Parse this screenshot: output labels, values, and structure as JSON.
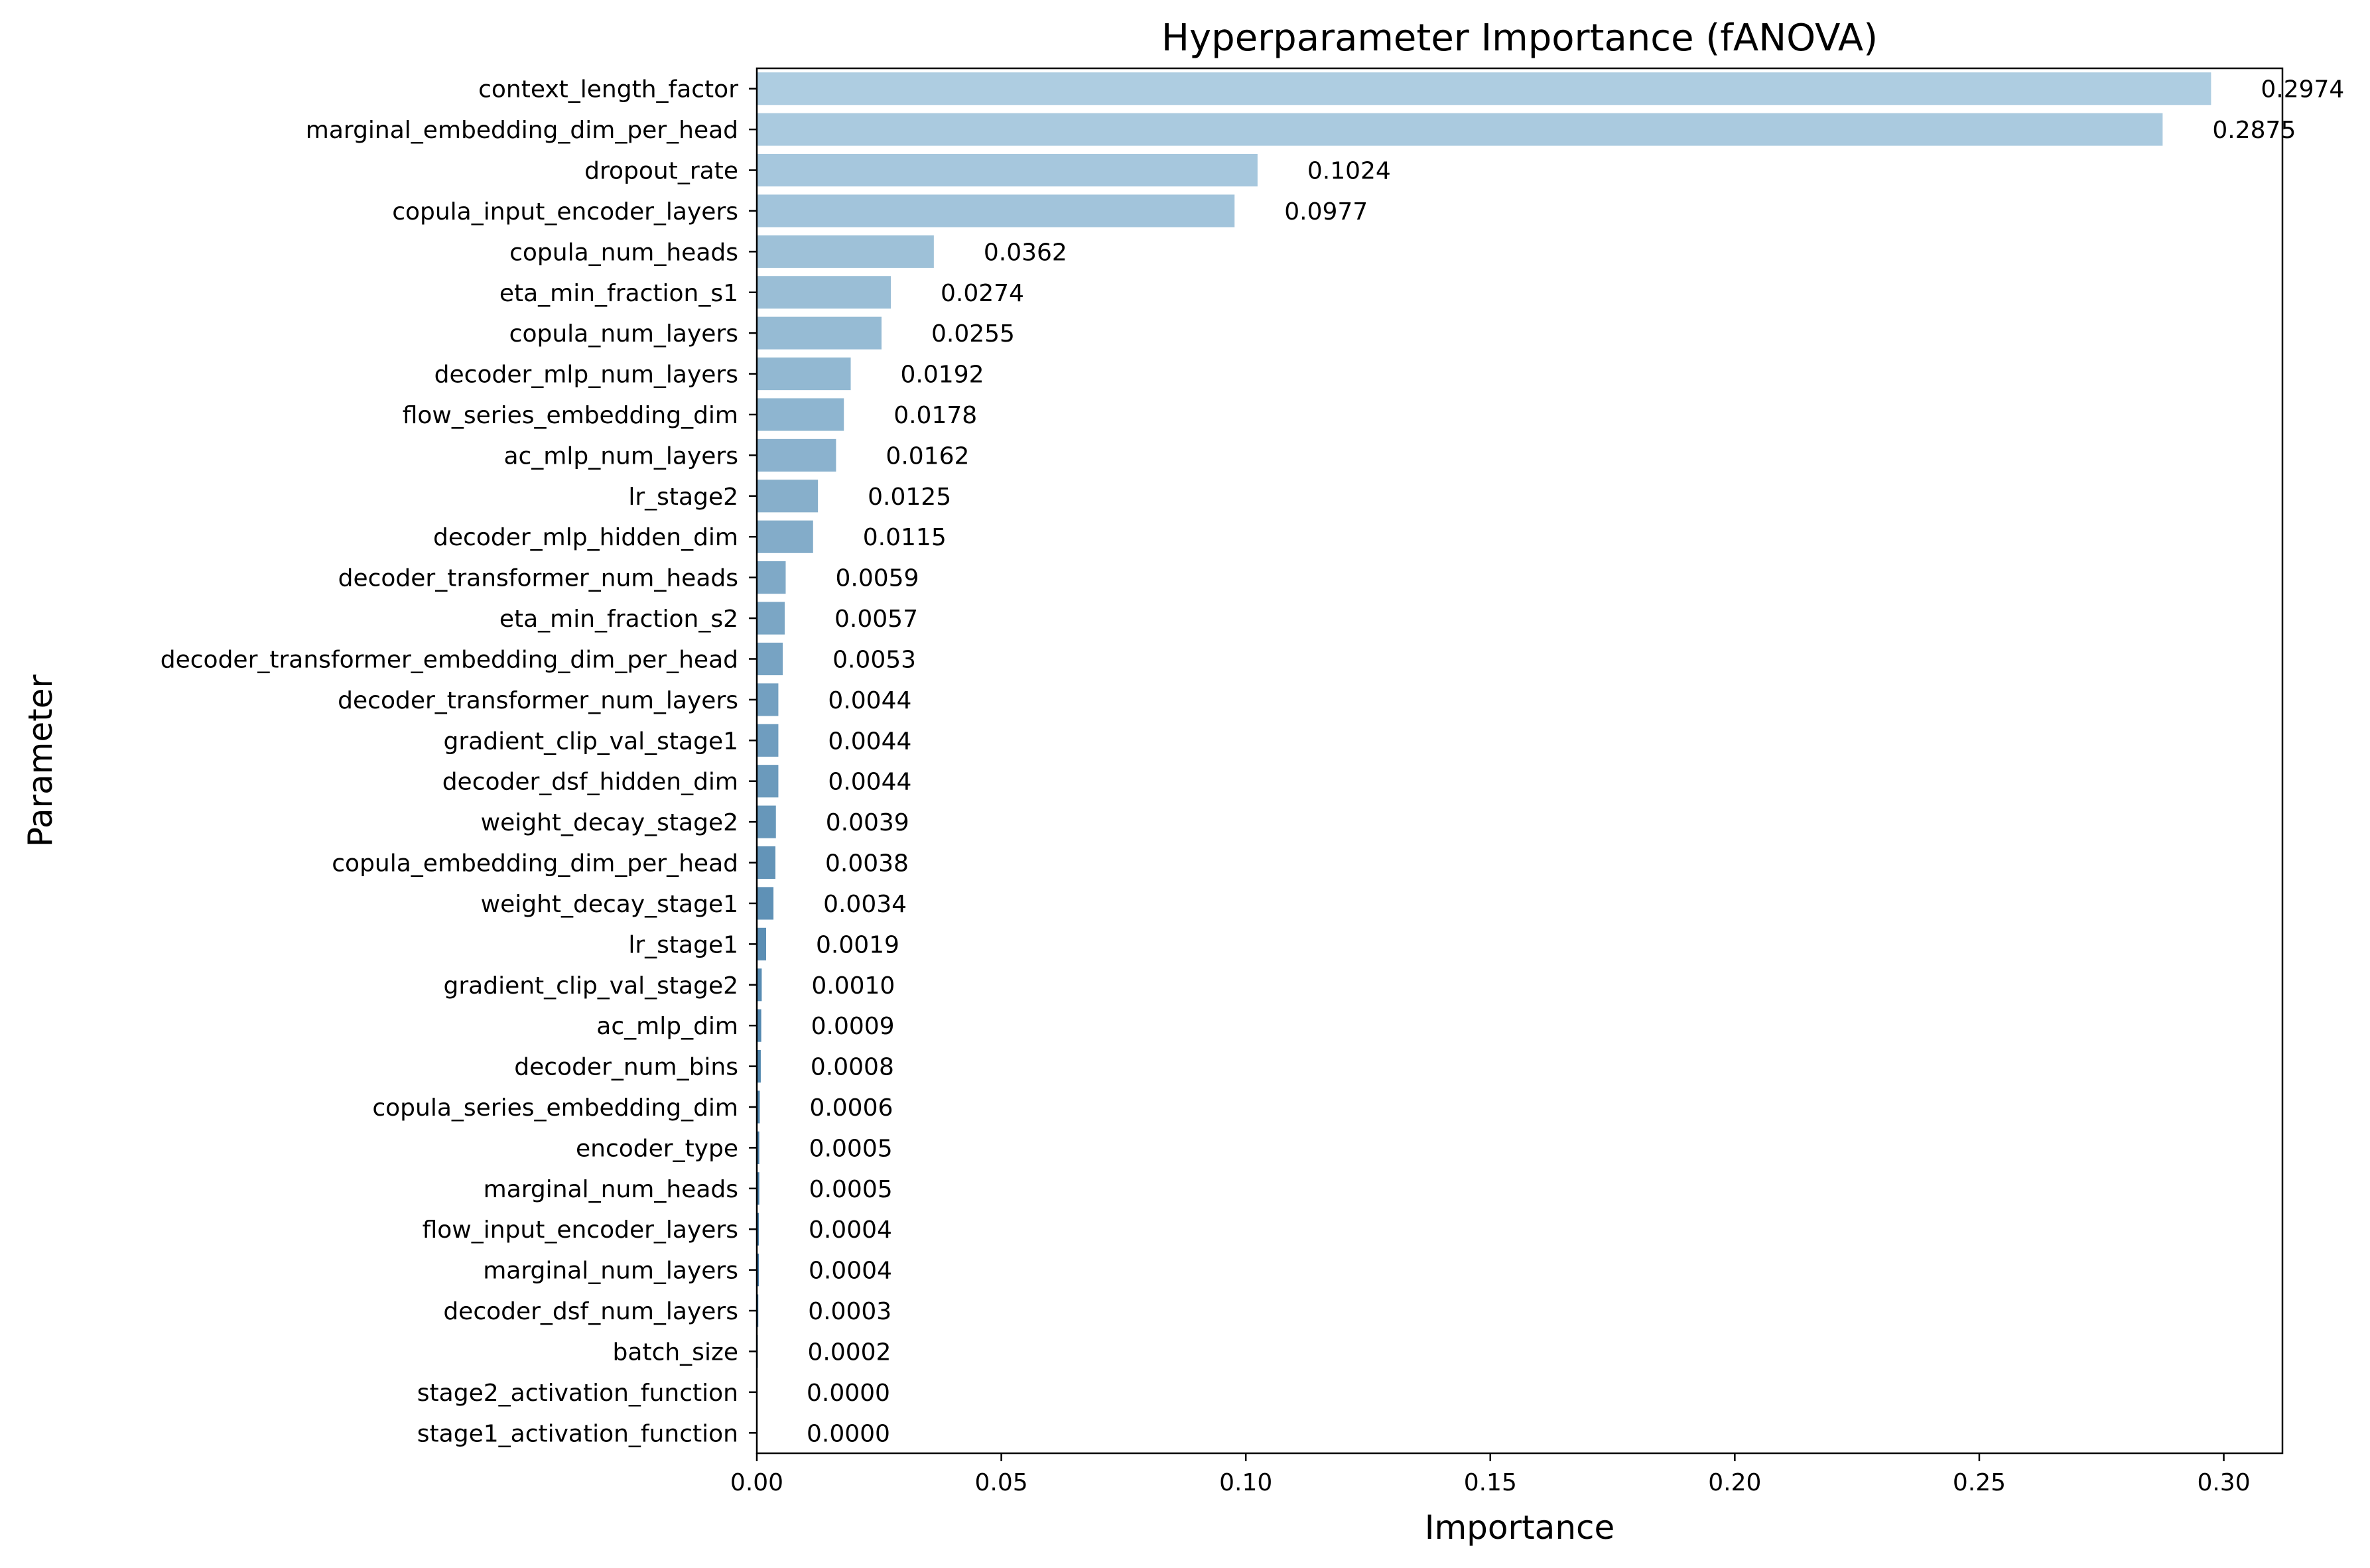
{
  "chart_data": {
    "type": "bar",
    "orientation": "horizontal",
    "title": "Hyperparameter Importance (fANOVA)",
    "xlabel": "Importance",
    "ylabel": "Parameter",
    "xlim": [
      0,
      0.312
    ],
    "xticks": [
      0.0,
      0.05,
      0.1,
      0.15,
      0.2,
      0.25,
      0.3
    ],
    "xtick_labels": [
      "0.00",
      "0.05",
      "0.10",
      "0.15",
      "0.20",
      "0.25",
      "0.30"
    ],
    "grid": false,
    "legend": "none",
    "categories": [
      "context_length_factor",
      "marginal_embedding_dim_per_head",
      "dropout_rate",
      "copula_input_encoder_layers",
      "copula_num_heads",
      "eta_min_fraction_s1",
      "copula_num_layers",
      "decoder_mlp_num_layers",
      "flow_series_embedding_dim",
      "ac_mlp_num_layers",
      "lr_stage2",
      "decoder_mlp_hidden_dim",
      "decoder_transformer_num_heads",
      "eta_min_fraction_s2",
      "decoder_transformer_embedding_dim_per_head",
      "decoder_transformer_num_layers",
      "gradient_clip_val_stage1",
      "decoder_dsf_hidden_dim",
      "weight_decay_stage2",
      "copula_embedding_dim_per_head",
      "weight_decay_stage1",
      "lr_stage1",
      "gradient_clip_val_stage2",
      "ac_mlp_dim",
      "decoder_num_bins",
      "copula_series_embedding_dim",
      "encoder_type",
      "marginal_num_heads",
      "flow_input_encoder_layers",
      "marginal_num_layers",
      "decoder_dsf_num_layers",
      "batch_size",
      "stage2_activation_function",
      "stage1_activation_function"
    ],
    "values": [
      0.2974,
      0.2875,
      0.1024,
      0.0977,
      0.0362,
      0.0274,
      0.0255,
      0.0192,
      0.0178,
      0.0162,
      0.0125,
      0.0115,
      0.0059,
      0.0057,
      0.0053,
      0.0044,
      0.0044,
      0.0044,
      0.0039,
      0.0038,
      0.0034,
      0.0019,
      0.001,
      0.0009,
      0.0008,
      0.0006,
      0.0005,
      0.0005,
      0.0004,
      0.0004,
      0.0003,
      0.0002,
      0.0,
      0.0
    ],
    "value_labels": [
      "0.2974",
      "0.2875",
      "0.1024",
      "0.0977",
      "0.0362",
      "0.0274",
      "0.0255",
      "0.0192",
      "0.0178",
      "0.0162",
      "0.0125",
      "0.0115",
      "0.0059",
      "0.0057",
      "0.0053",
      "0.0044",
      "0.0044",
      "0.0044",
      "0.0039",
      "0.0038",
      "0.0034",
      "0.0019",
      "0.0010",
      "0.0009",
      "0.0008",
      "0.0006",
      "0.0005",
      "0.0005",
      "0.0004",
      "0.0004",
      "0.0003",
      "0.0002",
      "0.0000",
      "0.0000"
    ],
    "colors": {
      "palette_start": "#aecde1",
      "palette_end": "#2c6a9a",
      "axis": "#000000",
      "text": "#000000",
      "background": "#ffffff"
    }
  }
}
